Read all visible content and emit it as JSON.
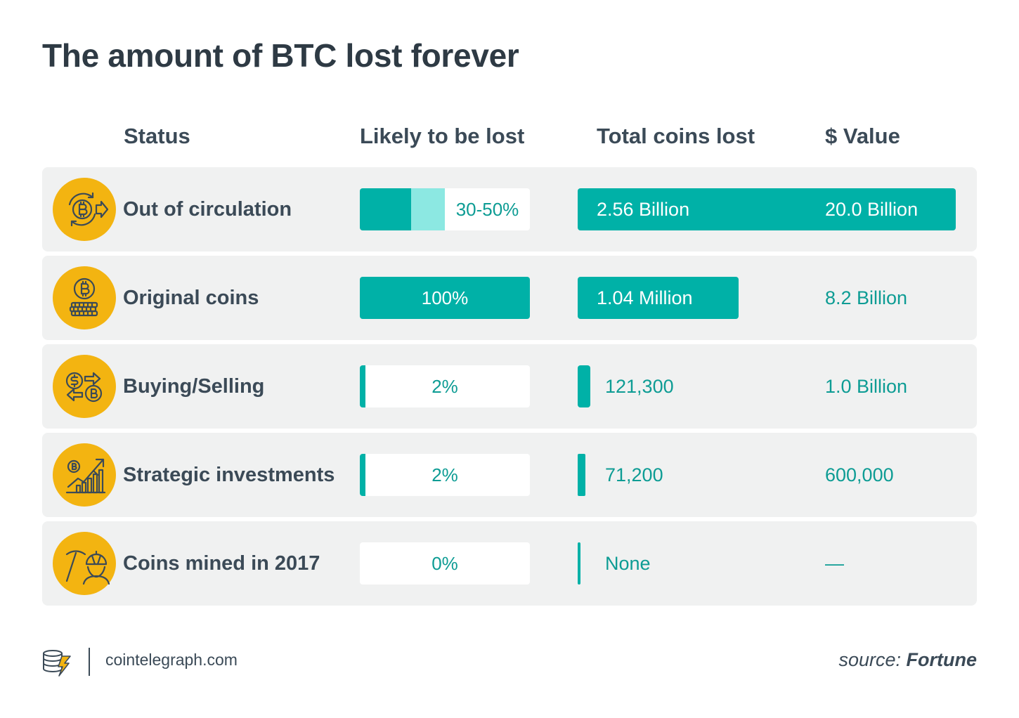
{
  "title": "The amount of BTC lost forever",
  "headers": {
    "status": "Status",
    "likely": "Likely to be lost",
    "coins": "Total coins lost",
    "value": "$ Value"
  },
  "colors": {
    "bar": "#00b1a7",
    "bar_light": "#8ce8e2",
    "icon_bg": "#f3b411",
    "row_bg": "#f0f1f1",
    "text_teal": "#0d9c94",
    "text_dark": "#3b4a57"
  },
  "chart_data": {
    "type": "table",
    "title": "The amount of BTC lost forever",
    "columns": [
      "Status",
      "Likely to be lost",
      "Total coins lost",
      "$ Value"
    ],
    "rows": [
      {
        "status": "Out of circulation",
        "icon": "bitcoin-circulation-icon",
        "likely_label": "30-50%",
        "likely_min_pct": 30,
        "likely_max_pct": 50,
        "coins_label": "2.56 Billion",
        "coins_bar_fraction": 1.0,
        "value_label": "20.0 Billion",
        "value_on_bar": true
      },
      {
        "status": "Original coins",
        "icon": "bitcoin-coins-stack-icon",
        "likely_label": "100%",
        "likely_min_pct": 100,
        "likely_max_pct": 100,
        "coins_label": "1.04 Million",
        "coins_bar_fraction": 0.426,
        "value_label": "8.2 Billion",
        "value_on_bar": false
      },
      {
        "status": "Buying/Selling",
        "icon": "exchange-icon",
        "likely_label": "2%",
        "likely_min_pct": 2,
        "likely_max_pct": 2,
        "coins_label": "121,300",
        "coins_bar_fraction": 0.033,
        "value_label": "1.0 Billion",
        "value_on_bar": false
      },
      {
        "status": "Strategic investments",
        "icon": "growth-chart-icon",
        "likely_label": "2%",
        "likely_min_pct": 2,
        "likely_max_pct": 2,
        "coins_label": "71,200",
        "coins_bar_fraction": 0.02,
        "value_label": "600,000",
        "value_on_bar": false
      },
      {
        "status": "Coins mined in 2017",
        "icon": "miner-pickaxe-icon",
        "likely_label": "0%",
        "likely_min_pct": 0,
        "likely_max_pct": 0,
        "coins_label": "None",
        "coins_bar_fraction": 0.007,
        "value_label": "—",
        "value_on_bar": false
      }
    ]
  },
  "footer": {
    "site": "cointelegraph.com",
    "source_label": "source:",
    "source_name": "Fortune",
    "logo_icon": "cointelegraph-logo-icon"
  }
}
